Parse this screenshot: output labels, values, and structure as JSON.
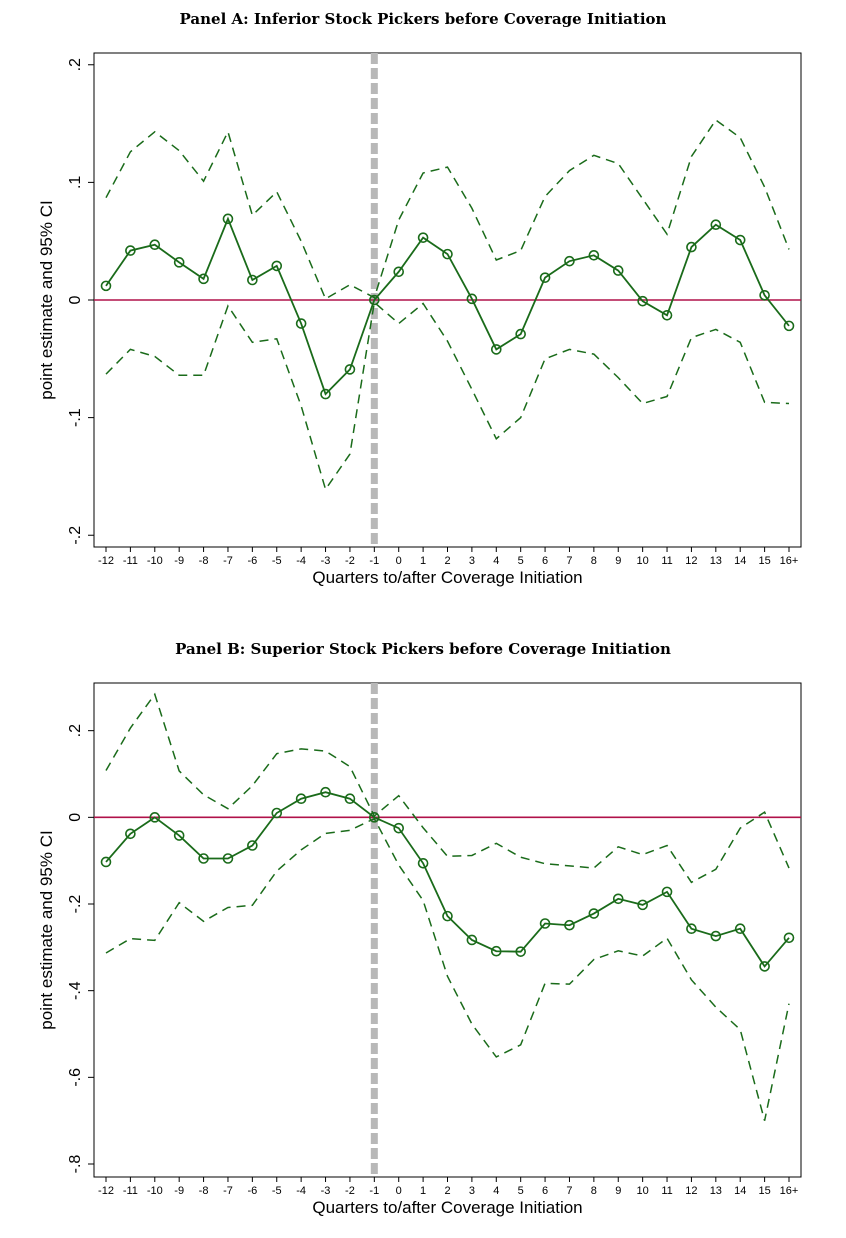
{
  "chart_data": [
    {
      "type": "line",
      "title": "Panel A: Inferior Stock Pickers before Coverage Initiation",
      "xlabel": "Quarters to/after Coverage Initiation",
      "ylabel": "point estimate and 95% CI",
      "categories": [
        "-12",
        "-11",
        "-10",
        "-9",
        "-8",
        "-7",
        "-6",
        "-5",
        "-4",
        "-3",
        "-2",
        "-1",
        "0",
        "1",
        "2",
        "3",
        "4",
        "5",
        "6",
        "7",
        "8",
        "9",
        "10",
        "11",
        "12",
        "13",
        "14",
        "15",
        "16+"
      ],
      "yticks": [
        0.2,
        0.1,
        0,
        -0.1,
        -0.2
      ],
      "ytick_labels": [
        ".2",
        ".1",
        "0",
        "-.1",
        "-.2"
      ],
      "ylim": [
        -0.21,
        0.21
      ],
      "reference_line_y": 0,
      "reference_line_x": "-1",
      "series": [
        {
          "role": "point",
          "color": "#1a6b1a",
          "values": [
            0.012,
            0.042,
            0.047,
            0.032,
            0.018,
            0.069,
            0.017,
            0.029,
            -0.02,
            -0.08,
            -0.059,
            0.0,
            0.024,
            0.053,
            0.039,
            0.001,
            -0.042,
            -0.029,
            0.019,
            0.033,
            0.038,
            0.025,
            -0.001,
            -0.013,
            0.045,
            0.064,
            0.051,
            0.004,
            -0.022
          ]
        },
        {
          "role": "upper",
          "color": "#1a6b1a",
          "values": [
            0.087,
            0.126,
            0.143,
            0.127,
            0.101,
            0.143,
            0.072,
            0.092,
            0.05,
            0.001,
            0.013,
            0.002,
            0.068,
            0.108,
            0.113,
            0.078,
            0.034,
            0.042,
            0.088,
            0.11,
            0.123,
            0.116,
            0.086,
            0.056,
            0.122,
            0.153,
            0.138,
            0.096,
            0.043
          ]
        },
        {
          "role": "lower",
          "color": "#1a6b1a",
          "values": [
            -0.063,
            -0.042,
            -0.048,
            -0.064,
            -0.064,
            -0.005,
            -0.036,
            -0.033,
            -0.09,
            -0.161,
            -0.131,
            -0.002,
            -0.02,
            -0.003,
            -0.035,
            -0.076,
            -0.118,
            -0.1,
            -0.05,
            -0.042,
            -0.046,
            -0.066,
            -0.088,
            -0.082,
            -0.032,
            -0.025,
            -0.036,
            -0.087,
            -0.088
          ]
        }
      ]
    },
    {
      "type": "line",
      "title": "Panel B: Superior Stock Pickers before Coverage Initiation",
      "xlabel": "Quarters to/after Coverage Initiation",
      "ylabel": "point estimate and 95% CI",
      "categories": [
        "-12",
        "-11",
        "-10",
        "-9",
        "-8",
        "-7",
        "-6",
        "-5",
        "-4",
        "-3",
        "-2",
        "-1",
        "0",
        "1",
        "2",
        "3",
        "4",
        "5",
        "6",
        "7",
        "8",
        "9",
        "10",
        "11",
        "12",
        "13",
        "14",
        "15",
        "16+"
      ],
      "yticks": [
        0.2,
        0,
        -0.2,
        -0.4,
        -0.6,
        -0.8
      ],
      "ytick_labels": [
        ".2",
        "0",
        "-.2",
        "-.4",
        "-.6",
        "-.8"
      ],
      "ylim": [
        -0.83,
        0.31
      ],
      "reference_line_y": 0,
      "reference_line_x": "-1",
      "series": [
        {
          "role": "point",
          "color": "#1a6b1a",
          "values": [
            -0.103,
            -0.038,
            0.0,
            -0.042,
            -0.095,
            -0.095,
            -0.065,
            0.01,
            0.043,
            0.058,
            0.043,
            0.0,
            -0.025,
            -0.106,
            -0.228,
            -0.283,
            -0.309,
            -0.31,
            -0.245,
            -0.249,
            -0.222,
            -0.188,
            -0.202,
            -0.172,
            -0.257,
            -0.274,
            -0.257,
            -0.344,
            -0.278
          ]
        },
        {
          "role": "upper",
          "color": "#1a6b1a",
          "values": [
            0.108,
            0.206,
            0.284,
            0.107,
            0.052,
            0.02,
            0.073,
            0.147,
            0.158,
            0.153,
            0.117,
            0.003,
            0.05,
            -0.024,
            -0.09,
            -0.088,
            -0.06,
            -0.092,
            -0.107,
            -0.112,
            -0.117,
            -0.068,
            -0.086,
            -0.065,
            -0.15,
            -0.12,
            -0.025,
            0.012,
            -0.117
          ]
        },
        {
          "role": "lower",
          "color": "#1a6b1a",
          "values": [
            -0.313,
            -0.28,
            -0.284,
            -0.197,
            -0.24,
            -0.208,
            -0.203,
            -0.124,
            -0.075,
            -0.037,
            -0.03,
            -0.003,
            -0.11,
            -0.192,
            -0.367,
            -0.477,
            -0.553,
            -0.525,
            -0.383,
            -0.385,
            -0.328,
            -0.308,
            -0.32,
            -0.279,
            -0.375,
            -0.438,
            -0.49,
            -0.7,
            -0.43
          ]
        }
      ]
    }
  ]
}
